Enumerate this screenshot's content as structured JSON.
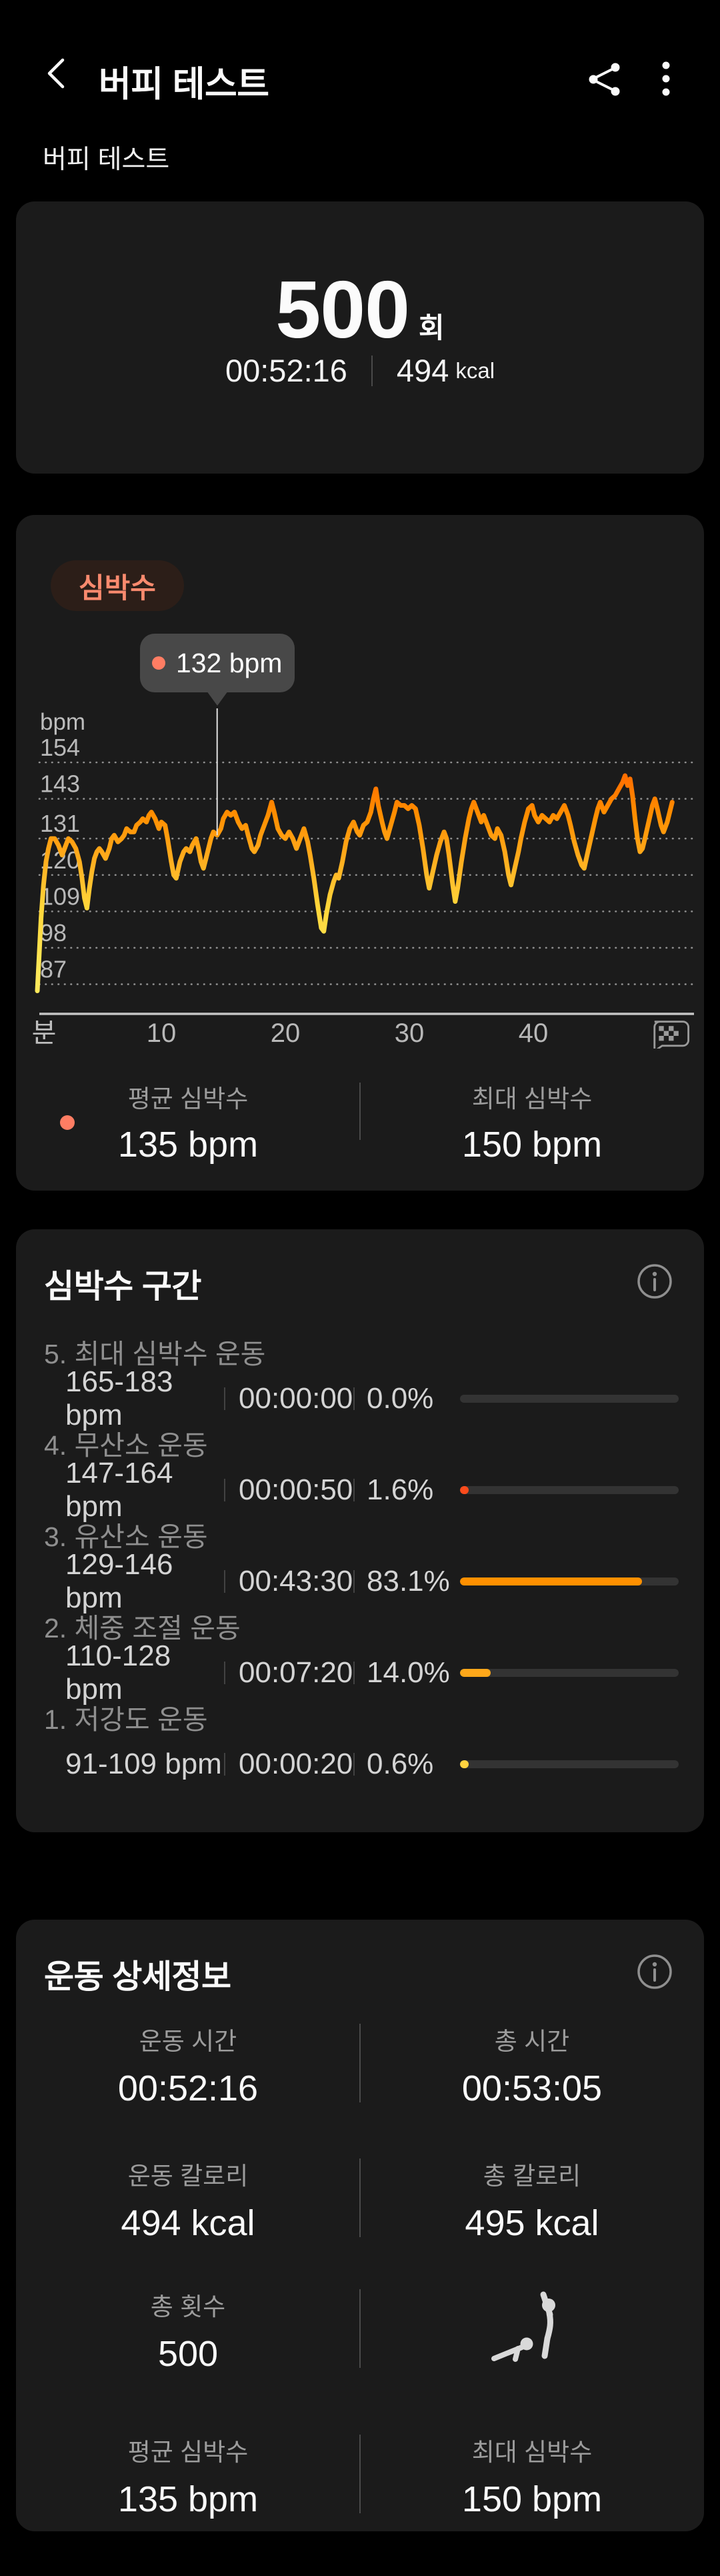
{
  "header": {
    "title": "버피 테스트"
  },
  "subtitle": "버피 테스트",
  "summary": {
    "count": "500",
    "count_unit": "회",
    "duration": "00:52:16",
    "calories": "494",
    "calories_unit": "kcal"
  },
  "heart_rate_card": {
    "badge": "심박수",
    "tooltip_label": "132 bpm",
    "avg_label": "평균 심박수",
    "avg_value": "135 bpm",
    "max_label": "최대 심박수",
    "max_value": "150 bpm"
  },
  "zones_card": {
    "title": "심박수 구간",
    "zones": [
      {
        "name": "5. 최대 심박수 운동",
        "range": "165-183 bpm",
        "time": "00:00:00",
        "pct": "0.0%",
        "pct_value": 0,
        "color": "#fb4b1c"
      },
      {
        "name": "4. 무산소 운동",
        "range": "147-164 bpm",
        "time": "00:00:50",
        "pct": "1.6%",
        "pct_value": 1.6,
        "color": "#fb4b1c"
      },
      {
        "name": "3. 유산소 운동",
        "range": "129-146 bpm",
        "time": "00:43:30",
        "pct": "83.1%",
        "pct_value": 83.1,
        "color": "#ff9000"
      },
      {
        "name": "2. 체중 조절 운동",
        "range": "110-128 bpm",
        "time": "00:07:20",
        "pct": "14.0%",
        "pct_value": 14.0,
        "color": "#ffa81a"
      },
      {
        "name": "1. 저강도 운동",
        "range": "91-109 bpm",
        "time": "00:00:20",
        "pct": "0.6%",
        "pct_value": 0.6,
        "color": "#ffd23f"
      }
    ]
  },
  "details_card": {
    "title": "운동 상세정보",
    "stats": [
      [
        {
          "label": "운동 시간",
          "value": "00:52:16"
        },
        {
          "label": "총 시간",
          "value": "00:53:05"
        }
      ],
      [
        {
          "label": "운동 칼로리",
          "value": "494 kcal"
        },
        {
          "label": "총 칼로리",
          "value": "495 kcal"
        }
      ],
      [
        {
          "label": "총 횟수",
          "value": "500"
        },
        {
          "icon": "burpee-icon"
        }
      ],
      [
        {
          "label": "평균 심박수",
          "value": "135 bpm"
        },
        {
          "label": "최대 심박수",
          "value": "150 bpm"
        }
      ]
    ]
  },
  "chart_data": {
    "type": "line",
    "title": "심박수",
    "ylabel": "bpm",
    "xlabel": "분",
    "yticks": [
      154,
      143,
      131,
      120,
      109,
      98,
      87
    ],
    "xticks": [
      10,
      20,
      30,
      40
    ],
    "ylim": [
      84,
      158
    ],
    "xlim": [
      0,
      52
    ],
    "grid": "dotted-horizontal",
    "avg_bpm": 135,
    "max_bpm": 150,
    "tooltip": {
      "t": 14.5,
      "bpm": 132,
      "label": "132 bpm"
    },
    "line_gradient": [
      "#ff3f0c",
      "#ff6c00",
      "#ff8d00",
      "#ffab1c",
      "#ffc22e",
      "#ffd63a",
      "#ffe95a"
    ],
    "points": [
      [
        0,
        85
      ],
      [
        0.15,
        96
      ],
      [
        0.3,
        107
      ],
      [
        0.5,
        117
      ],
      [
        0.7,
        124
      ],
      [
        0.9,
        128
      ],
      [
        1.1,
        131
      ],
      [
        1.4,
        131
      ],
      [
        1.7,
        129
      ],
      [
        2,
        126
      ],
      [
        2.2,
        128
      ],
      [
        2.5,
        131
      ],
      [
        2.8,
        130
      ],
      [
        3.1,
        128
      ],
      [
        3.4,
        124
      ],
      [
        3.6,
        119
      ],
      [
        3.8,
        113
      ],
      [
        4,
        110
      ],
      [
        4.2,
        116
      ],
      [
        4.4,
        121
      ],
      [
        4.6,
        125
      ],
      [
        4.8,
        127
      ],
      [
        5,
        128
      ],
      [
        5.2,
        127
      ],
      [
        5.5,
        125
      ],
      [
        5.8,
        128
      ],
      [
        6,
        131
      ],
      [
        6.2,
        132
      ],
      [
        6.5,
        130
      ],
      [
        6.8,
        131
      ],
      [
        7,
        132
      ],
      [
        7.2,
        134
      ],
      [
        7.5,
        133
      ],
      [
        7.8,
        133
      ],
      [
        8,
        135
      ],
      [
        8.3,
        136
      ],
      [
        8.5,
        137
      ],
      [
        8.8,
        136
      ],
      [
        9,
        138
      ],
      [
        9.2,
        139
      ],
      [
        9.5,
        137
      ],
      [
        9.8,
        134
      ],
      [
        10,
        136
      ],
      [
        10.3,
        135
      ],
      [
        10.5,
        131
      ],
      [
        10.8,
        124
      ],
      [
        11,
        120
      ],
      [
        11.2,
        119
      ],
      [
        11.5,
        124
      ],
      [
        11.8,
        127
      ],
      [
        12,
        128
      ],
      [
        12.3,
        127
      ],
      [
        12.5,
        129
      ],
      [
        12.8,
        131
      ],
      [
        13,
        128
      ],
      [
        13.2,
        124
      ],
      [
        13.4,
        122
      ],
      [
        13.6,
        125
      ],
      [
        13.8,
        128
      ],
      [
        14,
        131
      ],
      [
        14.2,
        133
      ],
      [
        14.5,
        132
      ],
      [
        14.8,
        134
      ],
      [
        15,
        137
      ],
      [
        15.3,
        139
      ],
      [
        15.6,
        138
      ],
      [
        15.9,
        139
      ],
      [
        16.2,
        136
      ],
      [
        16.5,
        134
      ],
      [
        16.8,
        135
      ],
      [
        17,
        132
      ],
      [
        17.3,
        128
      ],
      [
        17.5,
        127
      ],
      [
        17.8,
        129
      ],
      [
        18,
        132
      ],
      [
        18.3,
        135
      ],
      [
        18.6,
        138
      ],
      [
        18.9,
        142
      ],
      [
        19.1,
        139
      ],
      [
        19.4,
        134
      ],
      [
        19.7,
        132
      ],
      [
        20,
        131
      ],
      [
        20.3,
        133
      ],
      [
        20.6,
        131
      ],
      [
        20.9,
        128
      ],
      [
        21.2,
        131
      ],
      [
        21.5,
        134
      ],
      [
        21.8,
        130
      ],
      [
        22,
        126
      ],
      [
        22.3,
        119
      ],
      [
        22.6,
        111
      ],
      [
        22.9,
        104
      ],
      [
        23.1,
        103
      ],
      [
        23.3,
        108
      ],
      [
        23.6,
        114
      ],
      [
        23.9,
        118
      ],
      [
        24.1,
        120
      ],
      [
        24.3,
        119
      ],
      [
        24.6,
        124
      ],
      [
        24.9,
        130
      ],
      [
        25.2,
        134
      ],
      [
        25.5,
        136
      ],
      [
        25.8,
        133
      ],
      [
        26,
        132
      ],
      [
        26.3,
        135
      ],
      [
        26.6,
        136
      ],
      [
        26.9,
        139
      ],
      [
        27.1,
        143
      ],
      [
        27.3,
        146
      ],
      [
        27.5,
        141
      ],
      [
        27.8,
        136
      ],
      [
        28,
        133
      ],
      [
        28.2,
        131
      ],
      [
        28.5,
        135
      ],
      [
        28.8,
        139
      ],
      [
        29,
        142
      ],
      [
        29.3,
        141
      ],
      [
        29.6,
        141
      ],
      [
        29.9,
        140
      ],
      [
        30.2,
        141
      ],
      [
        30.5,
        140
      ],
      [
        30.8,
        135
      ],
      [
        31.1,
        128
      ],
      [
        31.4,
        120
      ],
      [
        31.6,
        116
      ],
      [
        31.9,
        121
      ],
      [
        32.2,
        126
      ],
      [
        32.5,
        130
      ],
      [
        32.8,
        133
      ],
      [
        33,
        131
      ],
      [
        33.2,
        126
      ],
      [
        33.5,
        117
      ],
      [
        33.7,
        112
      ],
      [
        33.9,
        116
      ],
      [
        34.2,
        124
      ],
      [
        34.5,
        131
      ],
      [
        34.8,
        137
      ],
      [
        35,
        140
      ],
      [
        35.2,
        142
      ],
      [
        35.5,
        139
      ],
      [
        35.8,
        136
      ],
      [
        36,
        138
      ],
      [
        36.3,
        135
      ],
      [
        36.6,
        132
      ],
      [
        36.9,
        131
      ],
      [
        37.1,
        134
      ],
      [
        37.4,
        132
      ],
      [
        37.7,
        127
      ],
      [
        38,
        120
      ],
      [
        38.2,
        117
      ],
      [
        38.5,
        122
      ],
      [
        38.8,
        127
      ],
      [
        39,
        131
      ],
      [
        39.3,
        136
      ],
      [
        39.6,
        140
      ],
      [
        39.9,
        141
      ],
      [
        40.1,
        138
      ],
      [
        40.4,
        136
      ],
      [
        40.7,
        138
      ],
      [
        41,
        137
      ],
      [
        41.3,
        136
      ],
      [
        41.6,
        138
      ],
      [
        41.9,
        137
      ],
      [
        42.2,
        139
      ],
      [
        42.5,
        141
      ],
      [
        42.8,
        138
      ],
      [
        43,
        135
      ],
      [
        43.3,
        130
      ],
      [
        43.6,
        126
      ],
      [
        43.9,
        123
      ],
      [
        44.1,
        122
      ],
      [
        44.4,
        127
      ],
      [
        44.7,
        132
      ],
      [
        45,
        137
      ],
      [
        45.2,
        140
      ],
      [
        45.4,
        142
      ],
      [
        45.7,
        139
      ],
      [
        46,
        141
      ],
      [
        46.3,
        143
      ],
      [
        46.6,
        144
      ],
      [
        46.9,
        146
      ],
      [
        47.2,
        148
      ],
      [
        47.4,
        150
      ],
      [
        47.6,
        147
      ],
      [
        47.8,
        149
      ],
      [
        48,
        144
      ],
      [
        48.2,
        137
      ],
      [
        48.4,
        131
      ],
      [
        48.6,
        127
      ],
      [
        48.8,
        128
      ],
      [
        49,
        131
      ],
      [
        49.3,
        136
      ],
      [
        49.6,
        141
      ],
      [
        49.8,
        143
      ],
      [
        50,
        140
      ],
      [
        50.3,
        135
      ],
      [
        50.5,
        133
      ],
      [
        50.8,
        136
      ],
      [
        51,
        139
      ],
      [
        51.2,
        142
      ]
    ]
  }
}
